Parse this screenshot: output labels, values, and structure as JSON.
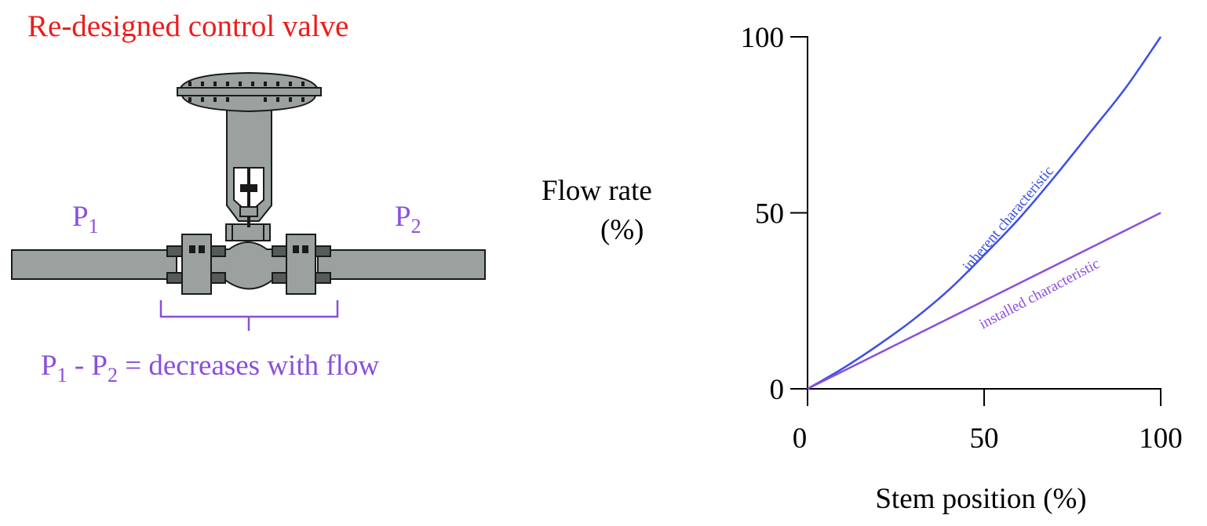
{
  "title": "Re-designed control valve",
  "colors": {
    "title": "#ee1c1c",
    "pressure": "#8a4fdc",
    "inherent": "#3b4fe6",
    "installed": "#8a4fdc",
    "valve_fill": "#9aa19f",
    "outline": "#1a1a1a"
  },
  "valve": {
    "p1_main": "P",
    "p1_sub": "1",
    "p2_main": "P",
    "p2_sub": "2",
    "caption": {
      "p1_main": "P",
      "p1_sub": "1",
      "minus": " - ",
      "p2_main": "P",
      "p2_sub": "2",
      "rest": " = decreases with flow"
    }
  },
  "chart_data": {
    "type": "line",
    "ylabel_line1": "Flow rate",
    "ylabel_line2": "(%)",
    "xlabel": "Stem position (%)",
    "xlim": [
      0,
      100
    ],
    "ylim": [
      0,
      100
    ],
    "xticks": [
      "0",
      "50",
      "100"
    ],
    "yticks": [
      "0",
      "50",
      "100"
    ],
    "series": [
      {
        "name": "inherent characteristic",
        "x": [
          0,
          10,
          20,
          30,
          40,
          50,
          60,
          70,
          80,
          90,
          100
        ],
        "values": [
          0,
          5.8,
          12.4,
          19.7,
          28.1,
          38.0,
          48.5,
          60.3,
          72.8,
          85.4,
          100
        ]
      },
      {
        "name": "installed characteristic",
        "x": [
          0,
          20,
          40,
          60,
          80,
          100
        ],
        "values": [
          0,
          10,
          20,
          30,
          40,
          50
        ]
      }
    ]
  }
}
